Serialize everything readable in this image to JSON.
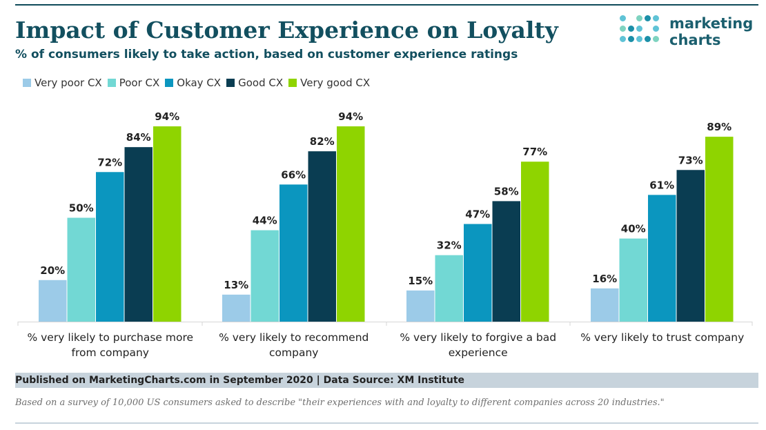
{
  "title": "Impact of Customer Experience on Loyalty",
  "subtitle": "% of consumers likely to take action, based on customer experience ratings",
  "logo": {
    "line1": "marketing",
    "line2": "charts"
  },
  "footer": "Published on MarketingCharts.com in September 2020 | Data Source: XM Institute",
  "note": "Based on a survey of 10,000 US consumers asked to describe \"their experiences with and loyalty to different companies across 20 industries.\"",
  "chart_data": {
    "type": "bar",
    "categories": [
      [
        "% very likely to purchase more",
        "from company"
      ],
      [
        "% very likely to recommend",
        "company"
      ],
      [
        "% very likely to forgive a bad",
        "experience"
      ],
      [
        "% very likely to trust company"
      ]
    ],
    "series": [
      {
        "name": "Very poor CX",
        "color": "#9ccbe8",
        "values": [
          20,
          13,
          15,
          16
        ]
      },
      {
        "name": "Poor CX",
        "color": "#72d8d4",
        "values": [
          50,
          44,
          32,
          40
        ]
      },
      {
        "name": "Okay CX",
        "color": "#0b96bf",
        "values": [
          72,
          66,
          47,
          61
        ]
      },
      {
        "name": "Good CX",
        "color": "#0a3d52",
        "values": [
          84,
          82,
          58,
          73
        ]
      },
      {
        "name": "Very good CX",
        "color": "#8fd400",
        "values": [
          94,
          94,
          77,
          89
        ]
      }
    ],
    "value_suffix": "%",
    "ylim": [
      0,
      100
    ],
    "grid": false,
    "legend": "top-left"
  }
}
